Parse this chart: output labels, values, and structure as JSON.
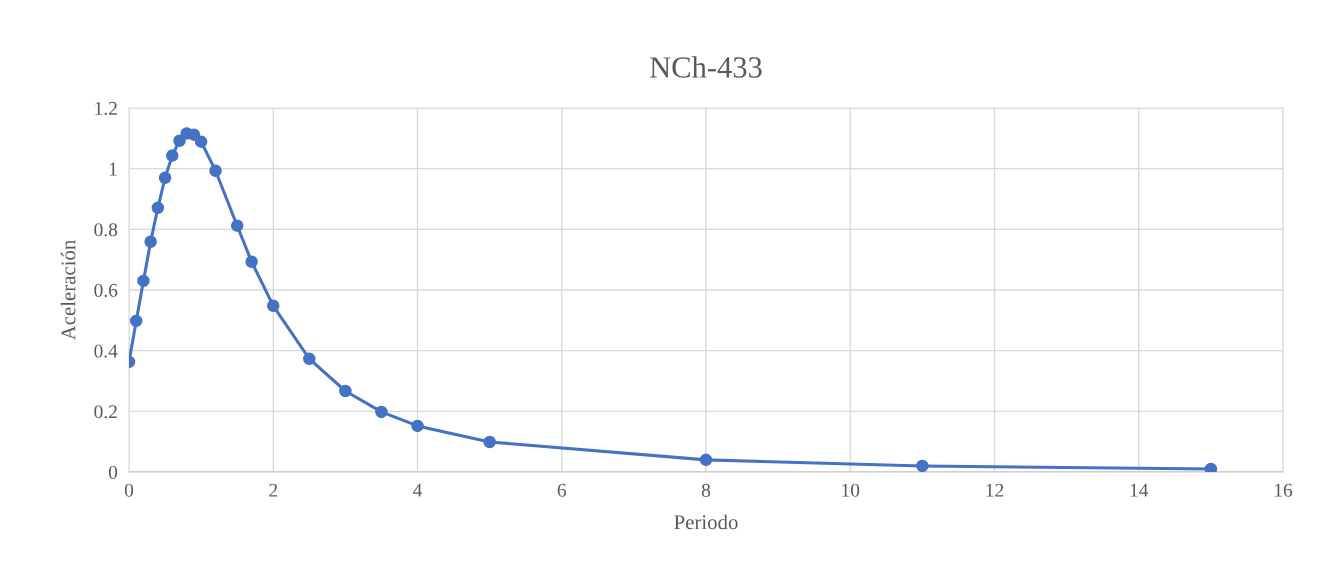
{
  "chart_data": {
    "type": "line",
    "title": "NCh-433",
    "xlabel": "Periodo",
    "ylabel": "Aceleración",
    "x": [
      0,
      0.1,
      0.2,
      0.3,
      0.4,
      0.5,
      0.6,
      0.7,
      0.8,
      0.9,
      1.0,
      1.2,
      1.5,
      1.7,
      2.0,
      2.5,
      3.0,
      3.5,
      4.0,
      5.0,
      8.0,
      11.0,
      15.0
    ],
    "series": [
      {
        "color": "#4472c4",
        "values": [
          0.363,
          0.498,
          0.63,
          0.759,
          0.871,
          0.97,
          1.043,
          1.092,
          1.116,
          1.112,
          1.089,
          0.993,
          0.812,
          0.693,
          0.548,
          0.373,
          0.267,
          0.198,
          0.152,
          0.099,
          0.04,
          0.02,
          0.01
        ]
      }
    ],
    "xlim": [
      0,
      16
    ],
    "xticks": [
      0,
      2,
      4,
      6,
      8,
      10,
      12,
      14,
      16
    ],
    "ylim": [
      0,
      1.2
    ],
    "yticks": [
      0,
      0.2,
      0.4,
      0.6,
      0.8,
      1,
      1.2
    ],
    "grid": true,
    "marker": "circle",
    "line_style": "solid",
    "legend": false
  }
}
